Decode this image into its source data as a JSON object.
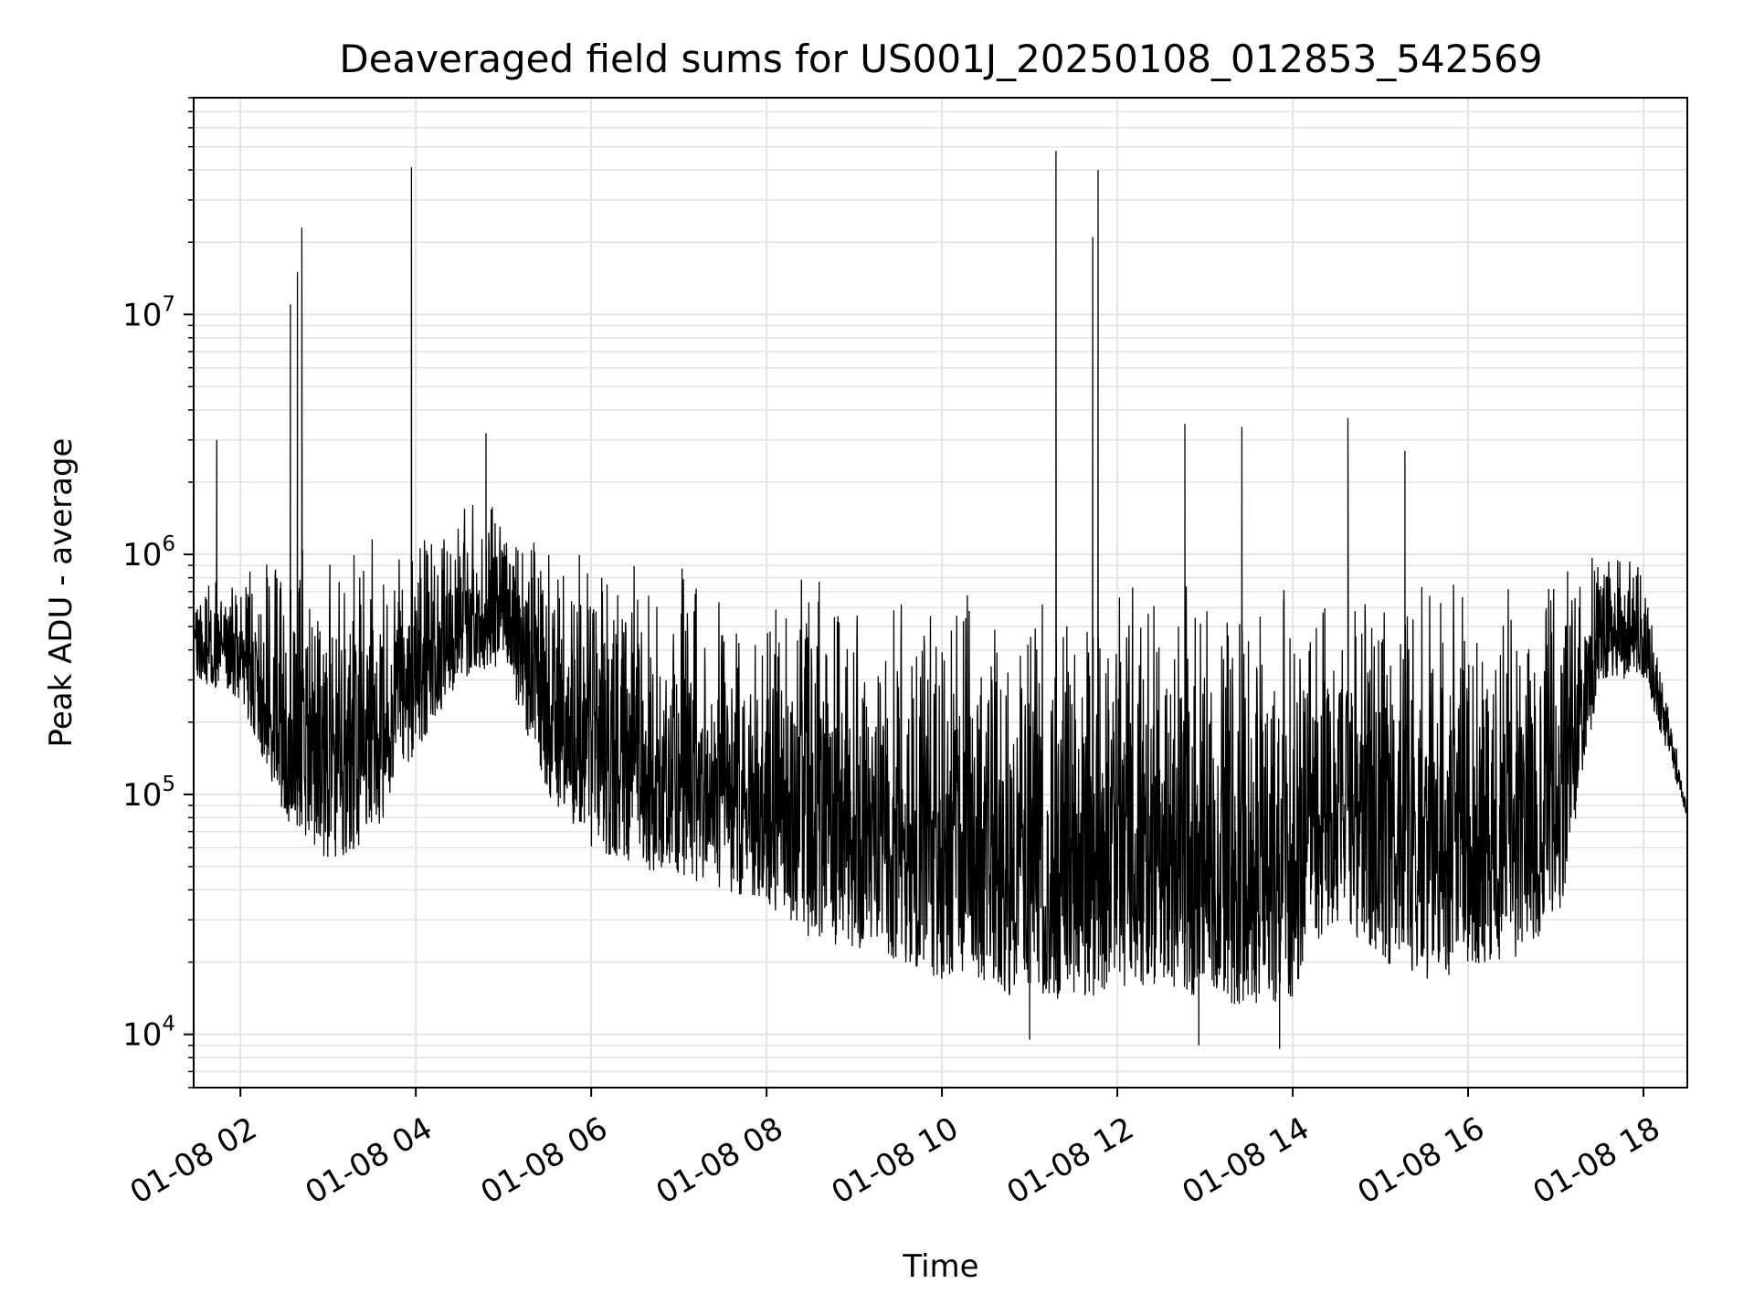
{
  "chart_data": {
    "type": "line",
    "title": "Deaveraged field sums for US001J_20250108_012853_542569",
    "xlabel": "Time",
    "ylabel": "Peak ADU - average",
    "y_scale": "log",
    "xlim": [
      "2025-01-08 01:28",
      "2025-01-08 18:30"
    ],
    "ylim": [
      6000,
      80000000
    ],
    "x_ticks": [
      "01-08 02",
      "01-08 04",
      "01-08 06",
      "01-08 08",
      "01-08 10",
      "01-08 12",
      "01-08 14",
      "01-08 16",
      "01-08 18"
    ],
    "x_tick_hours": [
      2,
      4,
      6,
      8,
      10,
      12,
      14,
      16,
      18
    ],
    "y_ticks": [
      {
        "base": "10",
        "exp": "4",
        "value": 10000
      },
      {
        "base": "10",
        "exp": "5",
        "value": 100000
      },
      {
        "base": "10",
        "exp": "6",
        "value": 1000000
      },
      {
        "base": "10",
        "exp": "7",
        "value": 10000000
      }
    ],
    "grid": true,
    "line_color": "#000000",
    "grid_color": "#e3e3e3",
    "envelope": {
      "hours": [
        1.48,
        2.0,
        2.5,
        3.0,
        3.5,
        4.0,
        4.5,
        5.0,
        5.5,
        6.0,
        6.5,
        7.0,
        7.5,
        8.0,
        8.5,
        9.0,
        9.5,
        10.0,
        10.5,
        11.0,
        11.5,
        12.0,
        12.5,
        13.0,
        13.5,
        14.0,
        14.5,
        15.0,
        15.5,
        16.0,
        16.5,
        17.0,
        17.5,
        18.0,
        18.5
      ],
      "upper": [
        700000,
        950000,
        1200000,
        1100000,
        1200000,
        1300000,
        1700000,
        1800000,
        1300000,
        1100000,
        1000000,
        900000,
        850000,
        800000,
        850000,
        800000,
        850000,
        800000,
        750000,
        700000,
        750000,
        750000,
        800000,
        750000,
        800000,
        850000,
        900000,
        850000,
        850000,
        900000,
        900000,
        1000000,
        1200000,
        950000,
        90000
      ],
      "lower": [
        300000,
        250000,
        80000,
        50000,
        60000,
        150000,
        300000,
        350000,
        100000,
        60000,
        50000,
        45000,
        40000,
        35000,
        25000,
        22000,
        20000,
        17000,
        15000,
        14000,
        14000,
        15000,
        16000,
        14000,
        13000,
        14000,
        30000,
        20000,
        17000,
        18000,
        20000,
        25000,
        300000,
        300000,
        80000
      ]
    },
    "spikes": [
      {
        "hour": 1.73,
        "value": 3000000
      },
      {
        "hour": 2.57,
        "value": 11000000
      },
      {
        "hour": 2.65,
        "value": 15000000
      },
      {
        "hour": 2.7,
        "value": 23000000
      },
      {
        "hour": 3.95,
        "value": 41000000
      },
      {
        "hour": 4.8,
        "value": 3200000
      },
      {
        "hour": 11.3,
        "value": 48000000
      },
      {
        "hour": 11.72,
        "value": 21000000
      },
      {
        "hour": 11.78,
        "value": 40000000
      },
      {
        "hour": 12.77,
        "value": 3500000
      },
      {
        "hour": 13.42,
        "value": 3400000
      },
      {
        "hour": 14.63,
        "value": 3700000
      },
      {
        "hour": 15.28,
        "value": 2700000
      }
    ],
    "dips": [
      {
        "hour": 11.0,
        "value": 9500
      },
      {
        "hour": 12.93,
        "value": 9000
      },
      {
        "hour": 13.85,
        "value": 8700
      }
    ]
  }
}
